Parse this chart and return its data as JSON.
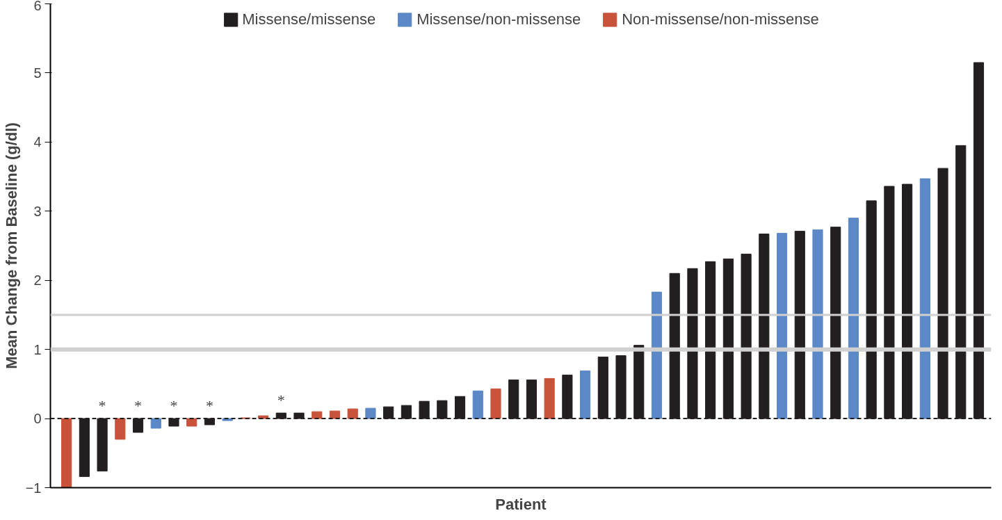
{
  "chart_data": {
    "type": "bar",
    "xlabel": "Patient",
    "ylabel": "Mean Change from Baseline (g/dl)",
    "categories": [
      null,
      null,
      null,
      null,
      null,
      null,
      null,
      null,
      null,
      null,
      null,
      null,
      null,
      null,
      null,
      null,
      null,
      null,
      null,
      null,
      null,
      null,
      null,
      null,
      null,
      null,
      null,
      null,
      null,
      null,
      null,
      null,
      null,
      null,
      null,
      null,
      null,
      null,
      null,
      null,
      null,
      null,
      null,
      null,
      null,
      null,
      null,
      null,
      null,
      null,
      null,
      null
    ],
    "series": [
      {
        "name": "Missense/missense",
        "color": "#231f20",
        "values": [
          null,
          -0.84,
          -0.76,
          null,
          -0.2,
          null,
          -0.11,
          null,
          -0.09,
          null,
          null,
          null,
          0.08,
          0.08,
          null,
          null,
          null,
          null,
          0.17,
          0.19,
          0.25,
          0.26,
          0.32,
          null,
          null,
          0.56,
          0.56,
          null,
          0.63,
          null,
          0.89,
          0.91,
          1.06,
          null,
          2.1,
          2.17,
          2.27,
          2.31,
          2.38,
          2.67,
          null,
          2.71,
          null,
          2.77,
          null,
          3.15,
          3.36,
          3.39,
          null,
          3.62,
          3.95,
          5.15
        ],
        "value_labels": [
          null,
          null,
          "*",
          null,
          "*",
          null,
          "*",
          null,
          "*",
          null,
          null,
          null,
          "*",
          null,
          null,
          null,
          null,
          null,
          null,
          null,
          null,
          null,
          null,
          null,
          null,
          null,
          null,
          null,
          null,
          null,
          null,
          null,
          null,
          null,
          null,
          null,
          null,
          null,
          null,
          null,
          null,
          null,
          null,
          null,
          null,
          null,
          null,
          null,
          null,
          null,
          null,
          null
        ]
      },
      {
        "name": "Missense/non-missense",
        "color": "#5b88c6",
        "values": [
          null,
          null,
          null,
          null,
          null,
          -0.14,
          null,
          null,
          null,
          -0.03,
          null,
          null,
          null,
          null,
          null,
          null,
          null,
          0.15,
          null,
          null,
          null,
          null,
          null,
          0.4,
          null,
          null,
          null,
          null,
          null,
          0.69,
          null,
          null,
          null,
          1.83,
          null,
          null,
          null,
          null,
          null,
          null,
          2.68,
          null,
          2.73,
          null,
          2.9,
          null,
          null,
          null,
          3.47,
          null,
          null,
          null
        ]
      },
      {
        "name": "Non-missense/non-missense",
        "color": "#c9523a",
        "values": [
          -1.0,
          null,
          null,
          -0.3,
          null,
          null,
          null,
          -0.11,
          null,
          null,
          0.01,
          0.04,
          null,
          null,
          0.1,
          0.11,
          0.14,
          null,
          null,
          null,
          null,
          null,
          null,
          null,
          0.43,
          null,
          null,
          0.58,
          null,
          null,
          null,
          null,
          null,
          null,
          null,
          null,
          null,
          null,
          null,
          null,
          null,
          null,
          null,
          null,
          null,
          null,
          null,
          null,
          null,
          null,
          null,
          null
        ]
      }
    ],
    "ylim": [
      -1,
      6
    ],
    "yticks": [
      -1,
      0,
      1,
      2,
      3,
      4,
      5,
      6
    ],
    "grid": false,
    "legend": "top",
    "ref_lines": [
      {
        "axis": "y",
        "value": 1,
        "color": "#d0d0d0"
      },
      {
        "axis": "y",
        "value": 1.5,
        "color": "#d0d0d0"
      },
      {
        "axis": "y",
        "value": 0,
        "color": "#231f20",
        "line_style": "dashed"
      }
    ]
  }
}
